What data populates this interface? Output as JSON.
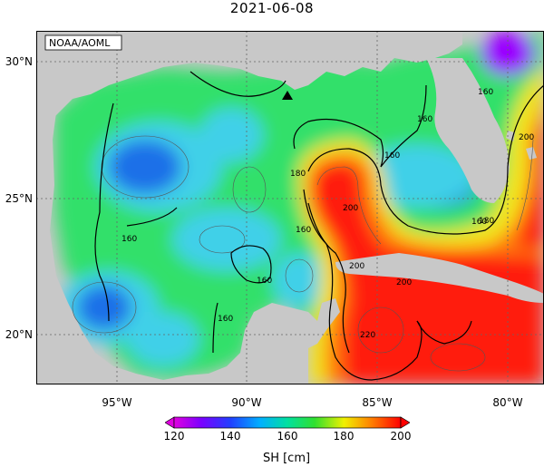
{
  "title": "2021-06-08",
  "credit": "NOAA/AOML",
  "lat_ticks": [
    "30°N",
    "25°N",
    "20°N"
  ],
  "lon_ticks": [
    "95°W",
    "90°W",
    "85°W",
    "80°W"
  ],
  "contour_labels": [
    "160",
    "160",
    "160",
    "160",
    "160",
    "160",
    "160",
    "160",
    "180",
    "180",
    "200",
    "200",
    "200",
    "200",
    "220"
  ],
  "colorbar": {
    "title": "SH [cm]",
    "ticks": [
      "120",
      "140",
      "160",
      "180",
      "200"
    ],
    "range": [
      120,
      200
    ]
  },
  "colors": {
    "land": "#c8c8c8",
    "low": "#9a00ff",
    "blue": "#1f6fe8",
    "cyan": "#3fd0e8",
    "green": "#33e06a",
    "yellow": "#f2e51c",
    "orange": "#ff7a10",
    "red": "#ff1e10"
  },
  "marker": "triangle"
}
